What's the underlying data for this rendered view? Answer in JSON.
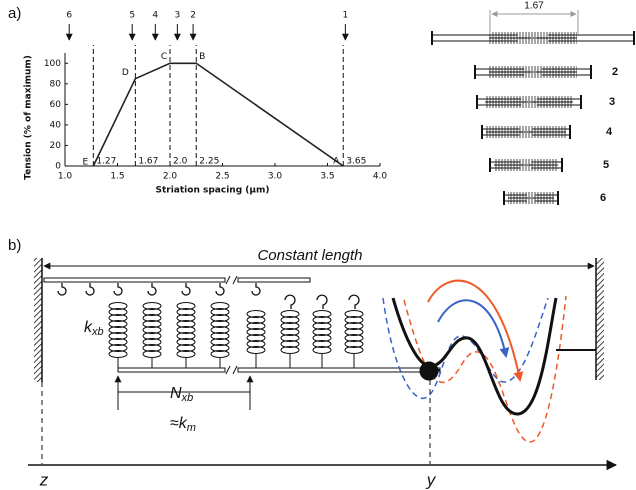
{
  "panel_a": {
    "label": "a)"
  },
  "chart_data": {
    "type": "line",
    "x_label": "Striation spacing (μm)",
    "y_label": "Tension (% of maximum)",
    "x": [
      1.27,
      1.67,
      2.0,
      2.25,
      3.65
    ],
    "values": [
      0,
      85,
      100,
      100,
      0
    ],
    "point_labels": [
      "E",
      "D",
      "C",
      "B",
      "A"
    ],
    "color": "#222222",
    "xlim": [
      1.0,
      4.0
    ],
    "xticks": [
      {
        "value": 1,
        "label": "1.0"
      },
      1.5,
      {
        "value": 2,
        "label": "2.0"
      },
      2.5,
      {
        "value": 3,
        "label": "3.0"
      },
      3.5,
      {
        "value": 4,
        "label": "4.0"
      }
    ],
    "ylim": [
      0,
      110
    ],
    "yticks": [
      0,
      20,
      40,
      60,
      80,
      100
    ],
    "spacing_lines": [
      1.27,
      1.67,
      {
        "value": 2,
        "label": "2.0"
      },
      2.25,
      3.65
    ],
    "arrows": {
      "x": [
        1.04,
        1.64,
        1.86,
        2.07,
        2.22,
        3.67
      ],
      "labels": [
        "6",
        "5",
        "4",
        "3",
        "2",
        "1"
      ]
    }
  },
  "sarcomeres": {
    "span_label": "1.67",
    "labels": [
      "2",
      "3",
      "4",
      "5",
      "6"
    ]
  },
  "panel_b": {
    "label": "b)",
    "constant_length": "Constant length",
    "k_xb": {
      "main": "k",
      "sub": "xb"
    },
    "n_xb": {
      "main": "N",
      "sub": "xb"
    },
    "k_m": {
      "prefix": "≈",
      "main": "k",
      "sub": "m"
    },
    "z_label": "z",
    "y_label": "y"
  }
}
